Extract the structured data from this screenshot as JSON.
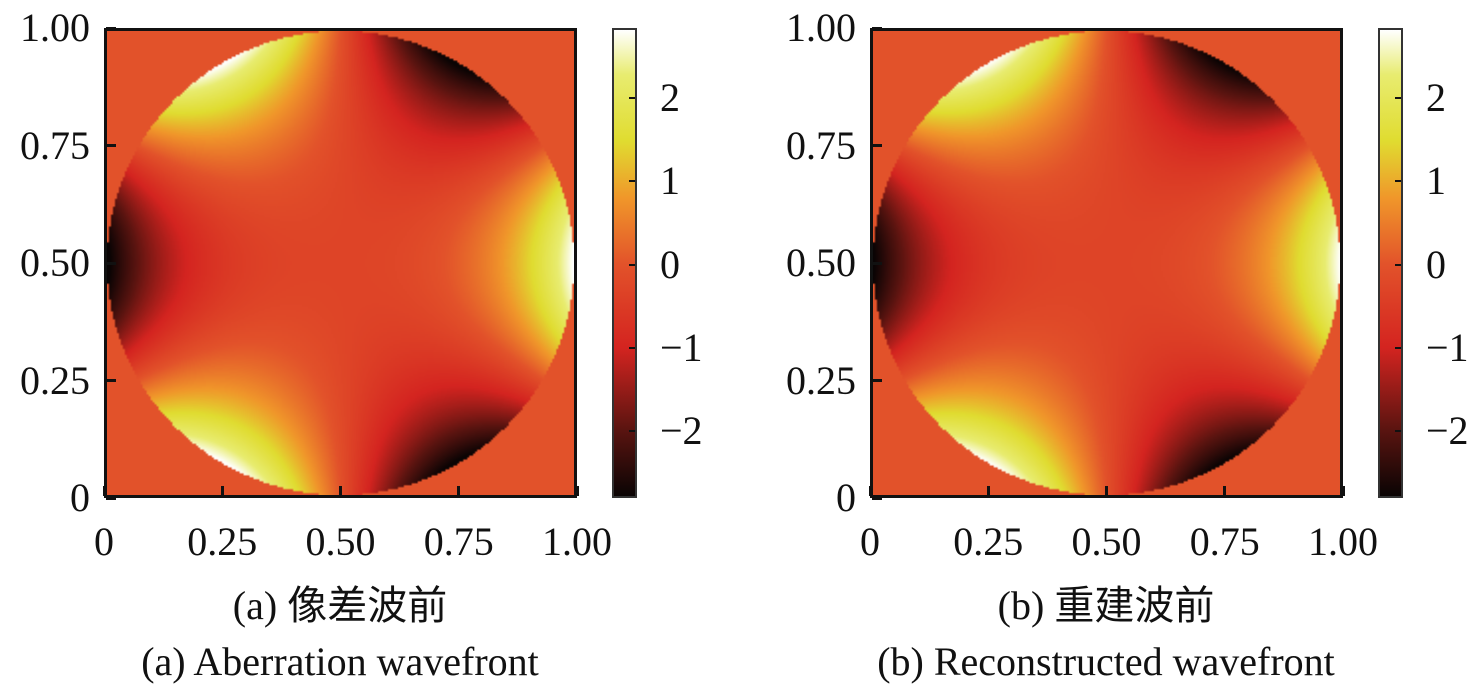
{
  "chart_data": [
    {
      "type": "heatmap",
      "title_zh": "(a) 像差波前",
      "title_en": "(a) Aberration wavefront",
      "xlim": [
        0,
        1
      ],
      "ylim": [
        0,
        1
      ],
      "xticks": [
        "0",
        "0.25",
        "0.50",
        "0.75",
        "1.00"
      ],
      "yticks": [
        "0",
        "0.25",
        "0.50",
        "0.75",
        "1.00"
      ],
      "colorbar": {
        "range": [
          -2.8,
          2.84
        ],
        "ticks": [
          2,
          1,
          0,
          -1,
          -2
        ],
        "tick_labels": [
          "2",
          "1",
          "0",
          "−1",
          "−2"
        ]
      },
      "field": {
        "model": "trefoil r^3 cos(3θ) over unit pupil",
        "amplitude": 2.9,
        "offset": -0.3,
        "outside_value": 0
      }
    },
    {
      "type": "heatmap",
      "title_zh": "(b) 重建波前",
      "title_en": "(b) Reconstructed wavefront",
      "xlim": [
        0,
        1
      ],
      "ylim": [
        0,
        1
      ],
      "xticks": [
        "0",
        "0.25",
        "0.50",
        "0.75",
        "1.00"
      ],
      "yticks": [
        "0",
        "0.25",
        "0.50",
        "0.75",
        "1.00"
      ],
      "colorbar": {
        "range": [
          -2.8,
          2.84
        ],
        "ticks": [
          2,
          1,
          0,
          -1,
          -2
        ],
        "tick_labels": [
          "2",
          "1",
          "0",
          "−1",
          "−2"
        ]
      },
      "field": {
        "model": "trefoil r^3 cos(3θ) over unit pupil",
        "amplitude": 2.85,
        "offset": -0.3,
        "outside_value": 0
      }
    }
  ],
  "colormap": [
    [
      -2.8,
      "#0a0404"
    ],
    [
      -2.0,
      "#5a1410"
    ],
    [
      -1.0,
      "#d42420"
    ],
    [
      0.0,
      "#e2522a"
    ],
    [
      0.8,
      "#f0962a"
    ],
    [
      1.5,
      "#e0dc30"
    ],
    [
      2.3,
      "#e8ec70"
    ],
    [
      2.84,
      "#ffffff"
    ]
  ]
}
